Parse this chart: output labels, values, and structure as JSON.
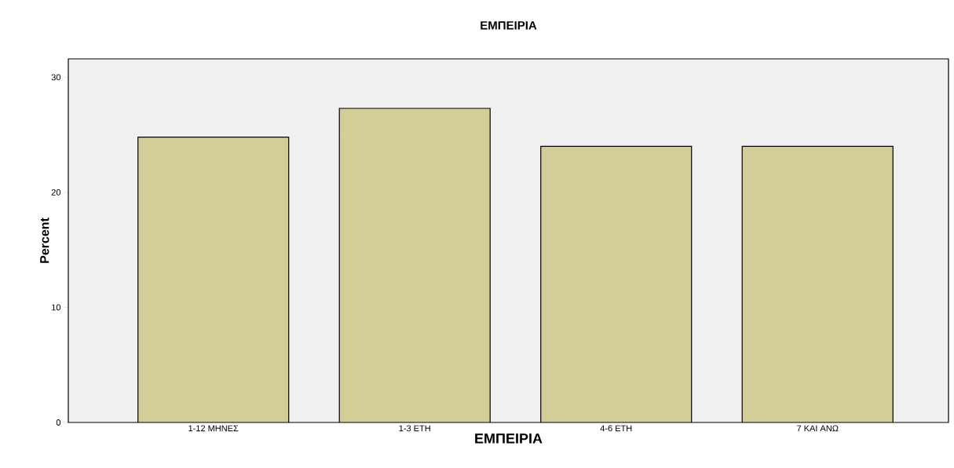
{
  "chart_data": {
    "type": "bar",
    "title": "ΕΜΠΕΙΡΙΑ",
    "xlabel": "ΕΜΠΕΙΡΙΑ",
    "ylabel": "Percent",
    "categories": [
      "1-12 ΜΗΝΕΣ",
      "1-3 ΕΤΗ",
      "4-6 ΕΤΗ",
      "7 ΚΑΙ ΑΝΩ"
    ],
    "values": [
      24.8,
      27.3,
      24.0,
      24.0
    ],
    "color": "#d3ce97",
    "ylim": [
      0,
      31.6
    ],
    "yticks": [
      0,
      10,
      20,
      30
    ],
    "grid": false
  }
}
